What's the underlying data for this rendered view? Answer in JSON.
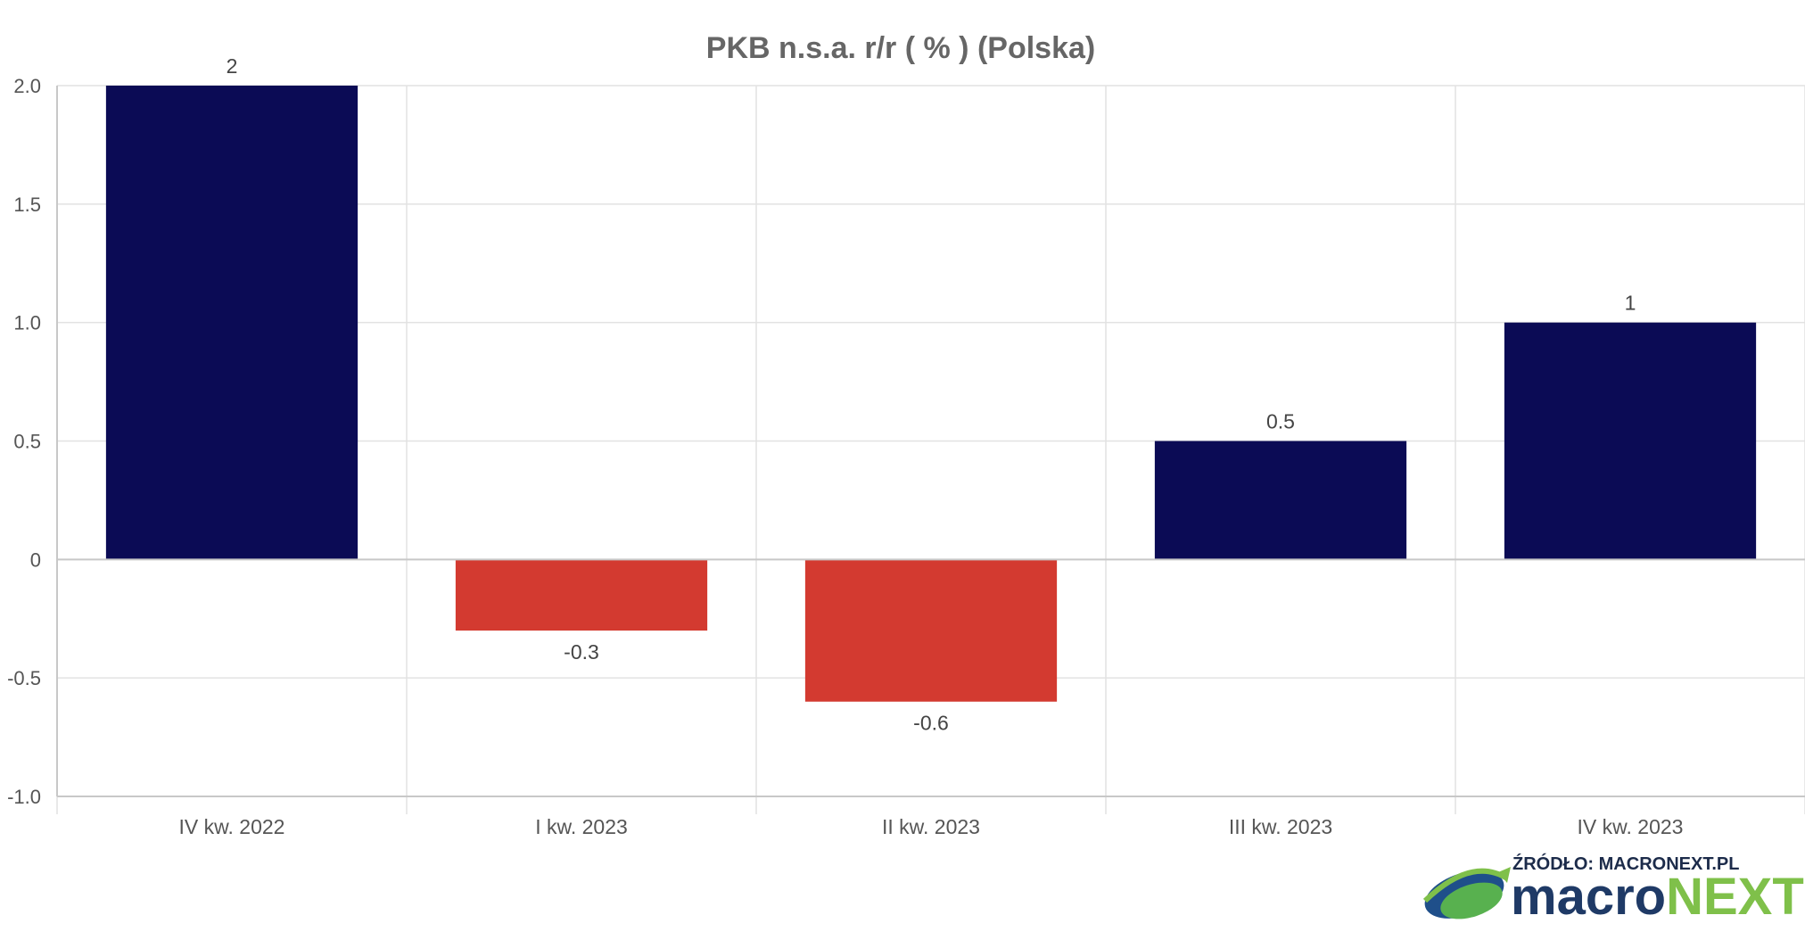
{
  "chart_data": {
    "type": "bar",
    "title": "PKB n.s.a. r/r ( % ) (Polska)",
    "categories": [
      "IV kw. 2022",
      "I kw. 2023",
      "II kw. 2023",
      "III kw. 2023",
      "IV kw. 2023"
    ],
    "values": [
      2,
      -0.3,
      -0.6,
      0.5,
      1
    ],
    "data_labels": [
      "2",
      "-0.3",
      "-0.6",
      "0.5",
      "1"
    ],
    "yticks": [
      2.0,
      1.5,
      1.0,
      0.5,
      0,
      -0.5,
      -1.0
    ],
    "ytick_labels": [
      "2.0",
      "1.5",
      "1.0",
      "0.5",
      "0",
      "-0.5",
      "-1.0"
    ],
    "ylim": [
      -1.0,
      2.0
    ],
    "grid": true,
    "colors": {
      "positive": "#0b0b55",
      "negative": "#d33a30"
    }
  },
  "branding": {
    "source": "ŹRÓDŁO: MACRONEXT.PL",
    "logo_part1": "macro",
    "logo_part2": "NEXT"
  }
}
